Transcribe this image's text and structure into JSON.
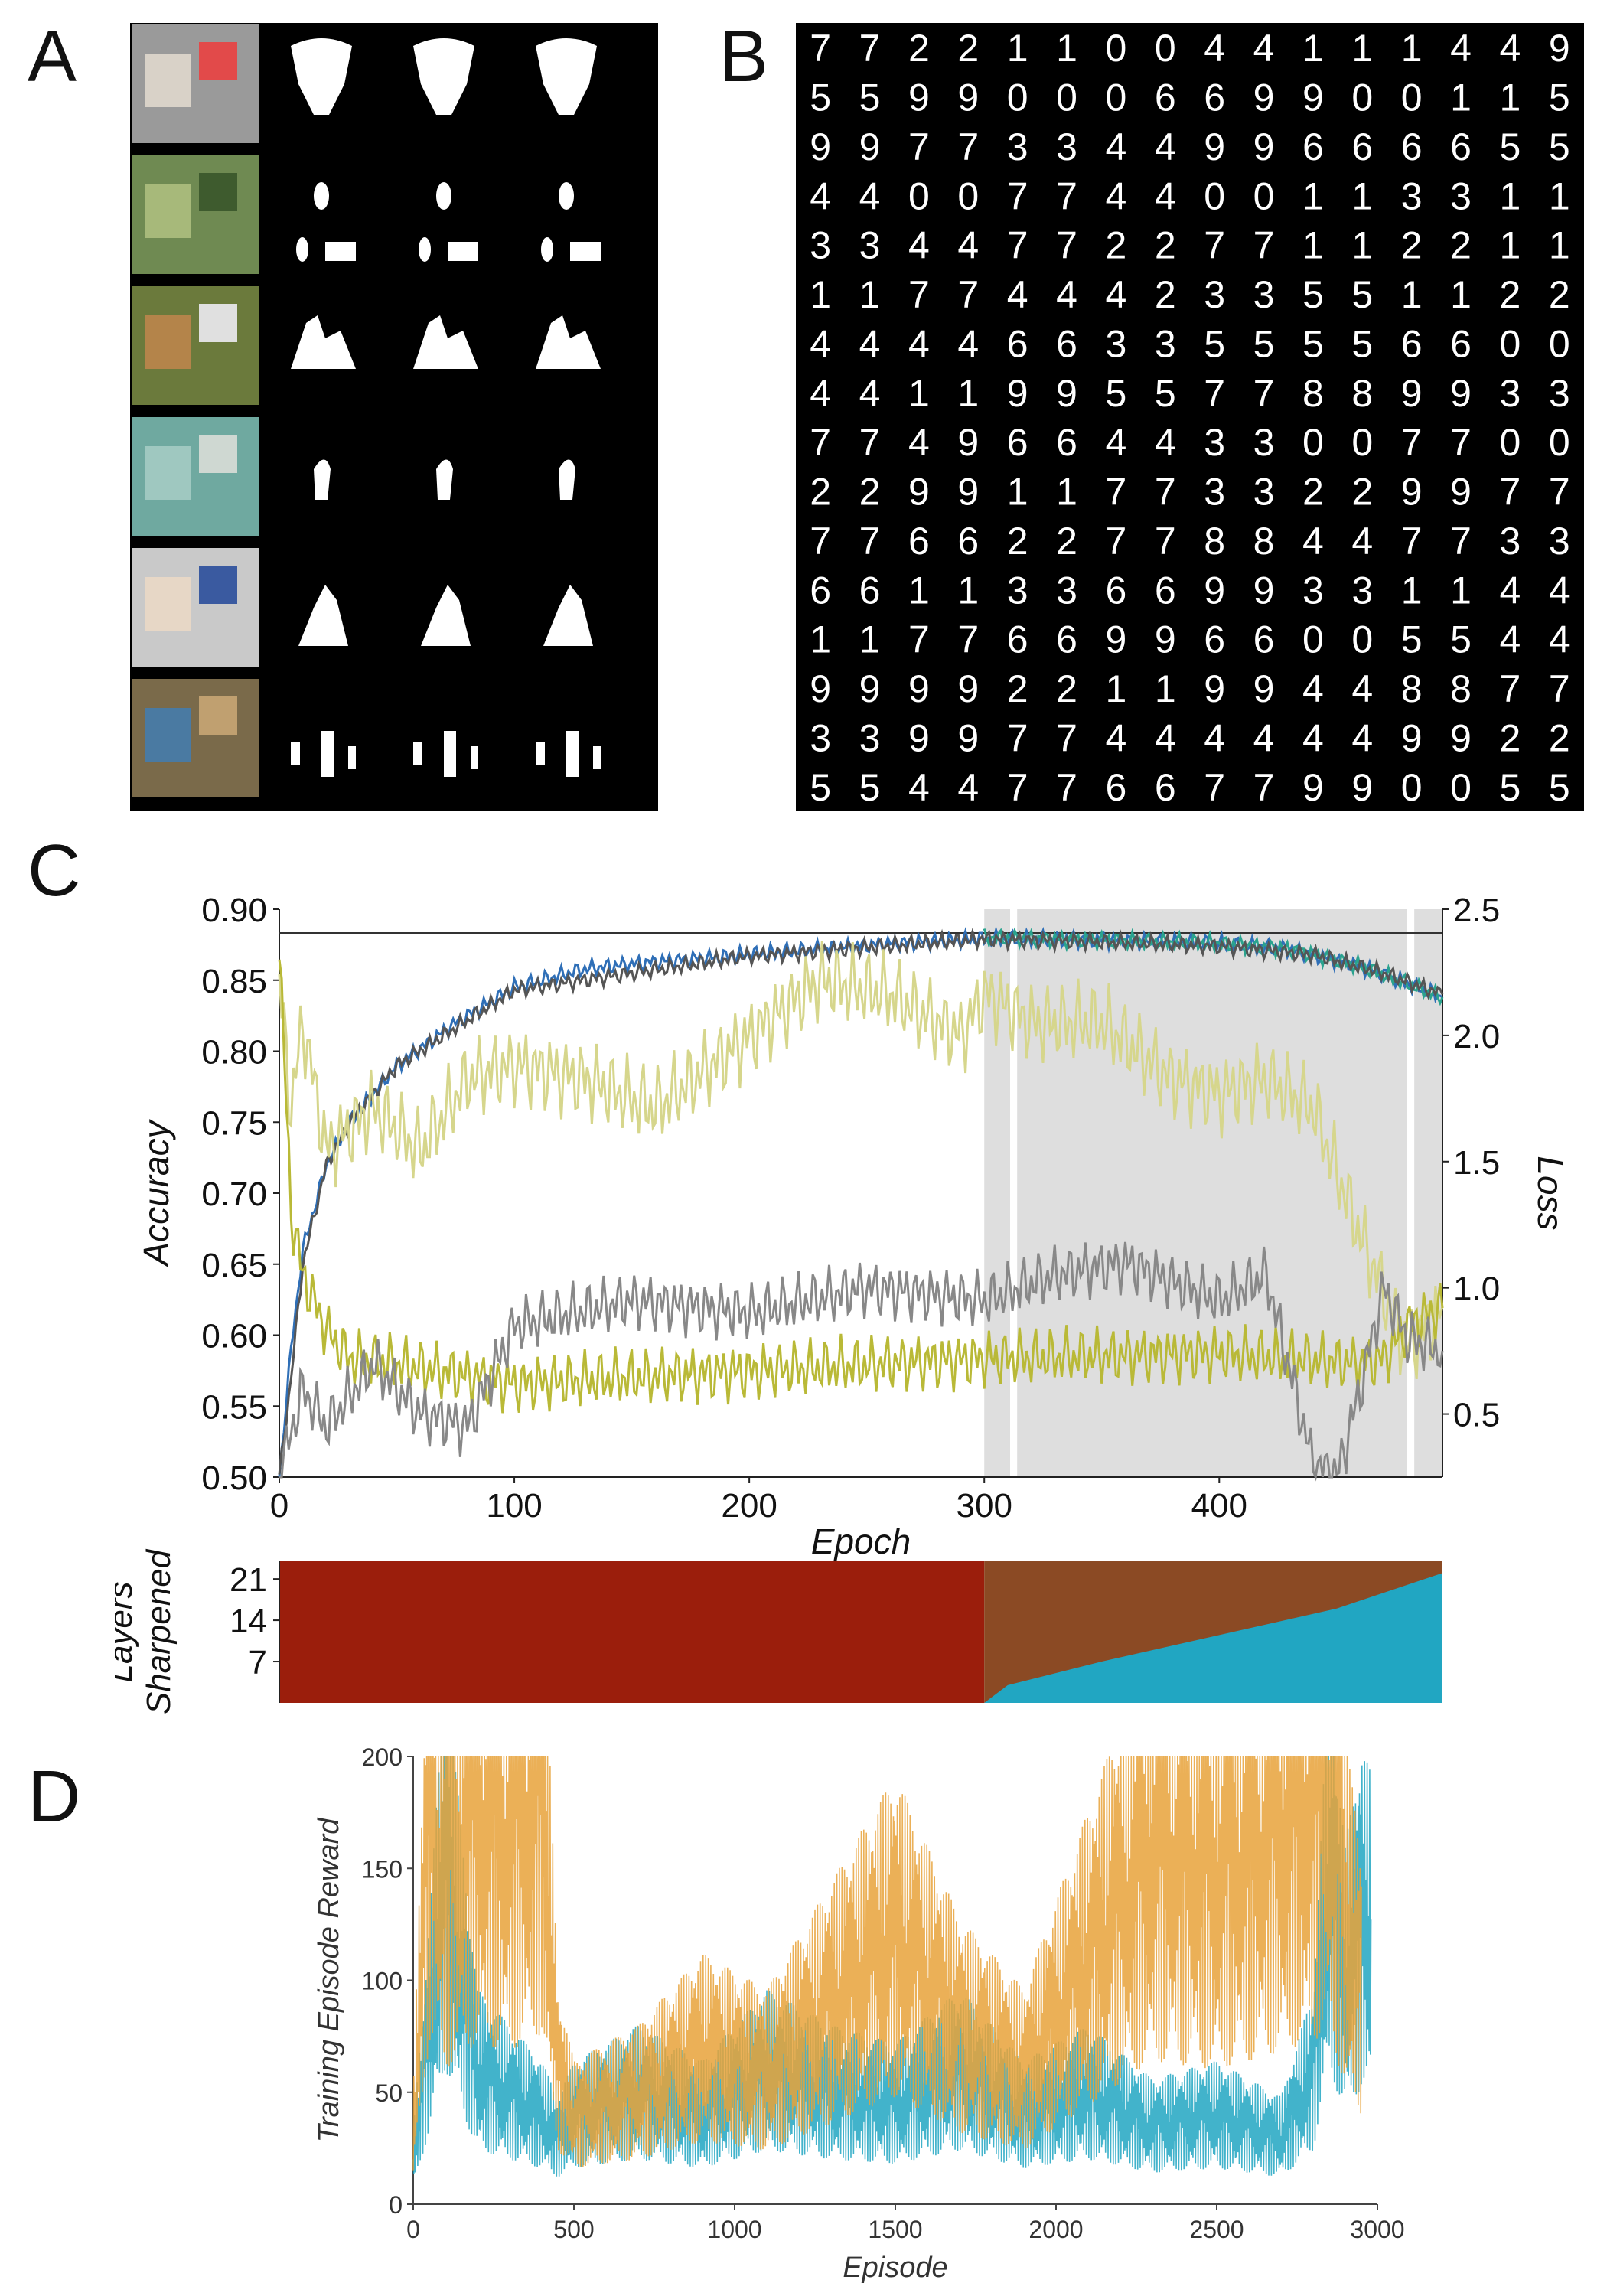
{
  "figure": {
    "panels": {
      "A": {
        "letter": "A"
      },
      "B": {
        "letter": "B"
      },
      "C": {
        "letter": "C"
      },
      "D": {
        "letter": "D"
      }
    },
    "colors": {
      "blue": "#2f6fb7",
      "teal": "#2aa38e",
      "dark_gray": "#555555",
      "olive": "#b9b937",
      "light_olive": "#d6d68c",
      "shade": "#dedede",
      "red_brown": "#9b1e0c",
      "brown": "#8b4a24",
      "cyan": "#21a6c2",
      "orange": "#e8a23a"
    },
    "digits": {
      "rows": [
        "7722110044111449",
        "5599000669900115",
        "9977334499666655",
        "4400774400113311",
        "3344772277112211",
        "1177444233551122",
        "4444663355556600",
        "4411995577889933",
        "7749664433007700",
        "2299117733229977",
        "7766227788447733",
        "6611336699331144",
        "1177669966005544",
        "9999221199448877",
        "3399774444449922",
        "5544776677990055"
      ]
    }
  },
  "chart_data": [
    {
      "panel": "C",
      "type": "line",
      "xlabel": "Epoch",
      "ylabel": "Accuracy",
      "y2label": "Loss",
      "xlim": [
        0,
        495
      ],
      "ylim": [
        0.5,
        0.9
      ],
      "y2lim": [
        0.25,
        2.5
      ],
      "x_ticks": [
        0,
        100,
        200,
        300,
        400
      ],
      "y_ticks": [
        0.5,
        0.55,
        0.6,
        0.65,
        0.7,
        0.75,
        0.8,
        0.85,
        0.9
      ],
      "y_tick_labels": [
        "0.50",
        "0.55",
        "0.60",
        "0.65",
        "0.70",
        "0.75",
        "0.80",
        "0.85",
        "0.90"
      ],
      "y2_ticks": [
        0.5,
        1.0,
        1.5,
        2.0,
        2.5
      ],
      "y2_tick_labels": [
        "0.5",
        "1.0",
        "1.5",
        "2.0",
        "2.5"
      ],
      "reference_line": 0.883,
      "shaded_regions": [
        [
          300,
          311
        ],
        [
          314,
          480
        ],
        [
          483,
          495
        ]
      ],
      "series": [
        {
          "axis": "left",
          "color": "#2f6fb7",
          "x": [
            0,
            5,
            10,
            20,
            30,
            50,
            75,
            100,
            130,
            160,
            200,
            230,
            260,
            300,
            330,
            360,
            400,
            430,
            460,
            495
          ],
          "values": [
            0.5,
            0.59,
            0.66,
            0.72,
            0.75,
            0.79,
            0.82,
            0.845,
            0.858,
            0.863,
            0.868,
            0.872,
            0.876,
            0.879,
            0.879,
            0.878,
            0.876,
            0.872,
            0.86,
            0.838
          ]
        },
        {
          "axis": "left",
          "color": "#2aa38e",
          "x": [
            300,
            330,
            360,
            400,
            430,
            460,
            495
          ],
          "values": [
            0.88,
            0.879,
            0.878,
            0.876,
            0.872,
            0.86,
            0.838
          ]
        },
        {
          "axis": "left",
          "color": "#555555",
          "x": [
            0,
            5,
            10,
            20,
            30,
            50,
            100,
            200,
            300,
            350,
            400,
            440,
            470,
            495
          ],
          "values": [
            0.5,
            0.57,
            0.65,
            0.72,
            0.75,
            0.79,
            0.843,
            0.867,
            0.879,
            0.877,
            0.874,
            0.868,
            0.855,
            0.84
          ]
        },
        {
          "axis": "left",
          "color": "#d6d68c",
          "x": [
            0,
            5,
            10,
            20,
            40,
            60,
            80,
            100,
            130,
            160,
            200,
            230,
            260,
            290,
            300,
            320,
            350,
            380,
            400,
            420,
            440,
            460,
            480,
            495
          ],
          "values": [
            0.85,
            0.76,
            0.82,
            0.73,
            0.76,
            0.73,
            0.78,
            0.79,
            0.78,
            0.76,
            0.81,
            0.85,
            0.84,
            0.81,
            0.84,
            0.82,
            0.82,
            0.78,
            0.77,
            0.78,
            0.76,
            0.67,
            0.59,
            0.62
          ]
        },
        {
          "axis": "right",
          "color": "#b9b937",
          "x": [
            0,
            5,
            10,
            20,
            30,
            50,
            80,
            100,
            200,
            300,
            400,
            460,
            470,
            480,
            495
          ],
          "values": [
            2.35,
            1.3,
            1.05,
            0.83,
            0.72,
            0.7,
            0.65,
            0.62,
            0.67,
            0.72,
            0.74,
            0.7,
            0.72,
            0.85,
            0.92
          ]
        },
        {
          "axis": "right",
          "color": "#888888",
          "x": [
            0,
            10,
            20,
            40,
            60,
            80,
            100,
            150,
            200,
            250,
            300,
            330,
            360,
            400,
            420,
            440,
            450,
            460,
            470,
            480,
            495
          ],
          "values": [
            0.25,
            0.6,
            0.45,
            0.7,
            0.5,
            0.45,
            0.85,
            0.95,
            0.9,
            1.0,
            0.95,
            1.05,
            1.1,
            0.95,
            1.05,
            0.3,
            0.25,
            0.6,
            1.0,
            0.8,
            0.75
          ]
        }
      ]
    },
    {
      "panel": "C-lower",
      "type": "area",
      "ylabel": "Layers Sharpened",
      "xlim": [
        0,
        495
      ],
      "ylim": [
        0,
        24
      ],
      "y_ticks": [
        7,
        14,
        21
      ],
      "y_tick_labels": [
        "7",
        "14",
        "21"
      ],
      "series": [
        {
          "name": "",
          "color": "#21a6c2",
          "x": [
            300,
            310,
            350,
            400,
            450,
            495
          ],
          "values": [
            0,
            3,
            7,
            11.5,
            16,
            22
          ]
        }
      ],
      "regions": [
        {
          "color": "#9b1e0c",
          "x": [
            0,
            300
          ]
        },
        {
          "color": "#8b4a24",
          "x": [
            300,
            495
          ]
        }
      ]
    },
    {
      "panel": "D",
      "type": "line",
      "xlabel": "Episode",
      "ylabel": "Training Episode Reward",
      "xlim": [
        0,
        3000
      ],
      "ylim": [
        0,
        200
      ],
      "x_ticks": [
        0,
        500,
        1000,
        1500,
        2000,
        2500,
        3000
      ],
      "x_tick_labels": [
        "0",
        "500",
        "1000",
        "1500",
        "2000",
        "2500",
        "3000"
      ],
      "y_ticks": [
        0,
        50,
        100,
        150,
        200
      ],
      "y_tick_labels": [
        "0",
        "50",
        "100",
        "150",
        "200"
      ],
      "series": [
        {
          "color": "#21a6c2",
          "x": [
            0,
            50,
            100,
            200,
            300,
            400,
            450,
            500,
            700,
            900,
            1100,
            1300,
            1500,
            1700,
            1900,
            2100,
            2300,
            2500,
            2700,
            2800,
            2850,
            2900,
            2950,
            2980
          ],
          "values": [
            20,
            80,
            150,
            60,
            50,
            40,
            30,
            40,
            50,
            40,
            60,
            50,
            45,
            60,
            40,
            50,
            35,
            40,
            30,
            60,
            150,
            100,
            130,
            120
          ]
        },
        {
          "color": "#e8a23a",
          "x": [
            0,
            50,
            100,
            200,
            300,
            400,
            450,
            500,
            700,
            900,
            1100,
            1300,
            1500,
            1700,
            1900,
            2100,
            2300,
            2500,
            2700,
            2850,
            2900,
            2950
          ],
          "values": [
            30,
            180,
            150,
            180,
            170,
            190,
            60,
            40,
            50,
            70,
            60,
            90,
            120,
            80,
            60,
            110,
            160,
            150,
            170,
            190,
            130,
            100
          ]
        }
      ]
    }
  ]
}
